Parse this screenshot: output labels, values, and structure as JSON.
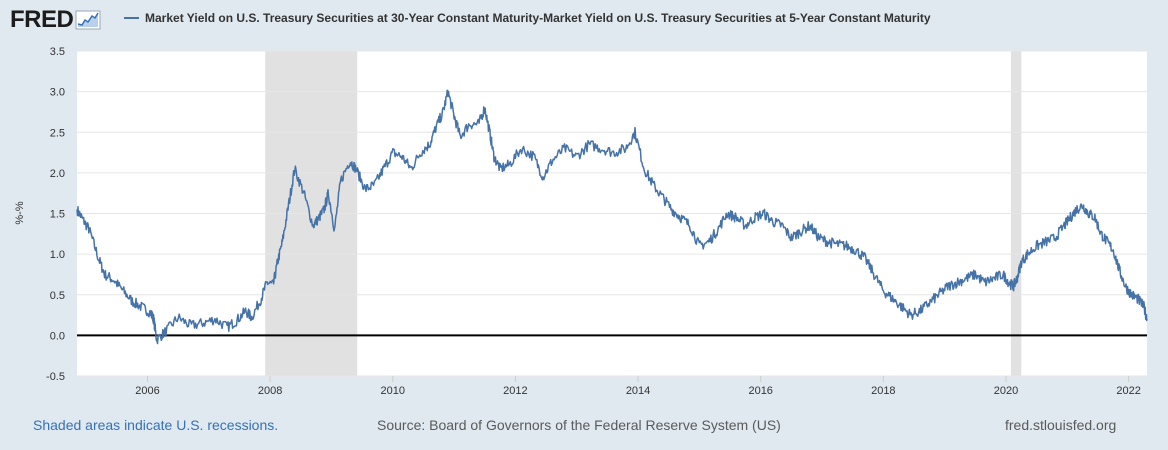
{
  "header": {
    "logo_text": "FRED",
    "logo_icon": "chart-line-icon"
  },
  "footer": {
    "recession_note": "Shaded areas indicate U.S. recessions.",
    "source": "Source: Board of Governors of the Federal Reserve System (US)",
    "site": "fred.stlouisfed.org"
  },
  "colors": {
    "series": "#4572a7",
    "recession": "#e1e1e1",
    "zero_line": "#000000",
    "background": "#e1e9f0",
    "plot": "#ffffff"
  },
  "chart_data": {
    "type": "line",
    "title": "Market Yield on U.S. Treasury Securities at 30-Year Constant Maturity-Market Yield on U.S. Treasury Securities at 5-Year Constant Maturity",
    "xlabel": "",
    "ylabel": "%-%",
    "xlim": [
      2004.85,
      2022.3
    ],
    "ylim": [
      -0.5,
      3.5
    ],
    "y_ticks": [
      "-0.5",
      "0.0",
      "0.5",
      "1.0",
      "1.5",
      "2.0",
      "2.5",
      "3.0",
      "3.5"
    ],
    "x_ticks": [
      "2006",
      "2008",
      "2010",
      "2012",
      "2014",
      "2016",
      "2018",
      "2020",
      "2022"
    ],
    "recessions": [
      [
        2007.92,
        2009.42
      ],
      [
        2020.08,
        2020.25
      ]
    ],
    "series": [
      {
        "name": "Market Yield on U.S. Treasury Securities at 30-Year Constant Maturity-Market Yield on U.S. Treasury Securities at 5-Year Constant Maturity",
        "x": [
          2004.85,
          2004.95,
          2005.05,
          2005.2,
          2005.3,
          2005.45,
          2005.6,
          2005.75,
          2005.9,
          2006.05,
          2006.1,
          2006.15,
          2006.3,
          2006.5,
          2006.7,
          2006.9,
          2007.1,
          2007.3,
          2007.45,
          2007.6,
          2007.7,
          2007.85,
          2007.95,
          2008.05,
          2008.12,
          2008.2,
          2008.3,
          2008.4,
          2008.55,
          2008.7,
          2008.8,
          2008.88,
          2008.95,
          2009.05,
          2009.15,
          2009.3,
          2009.4,
          2009.55,
          2009.7,
          2009.85,
          2010.0,
          2010.15,
          2010.3,
          2010.45,
          2010.6,
          2010.7,
          2010.82,
          2010.9,
          2011.0,
          2011.1,
          2011.25,
          2011.4,
          2011.5,
          2011.58,
          2011.65,
          2011.75,
          2011.9,
          2012.1,
          2012.3,
          2012.45,
          2012.6,
          2012.8,
          2013.0,
          2013.2,
          2013.4,
          2013.6,
          2013.8,
          2013.95,
          2014.1,
          2014.25,
          2014.4,
          2014.55,
          2014.7,
          2014.85,
          2015.0,
          2015.15,
          2015.3,
          2015.45,
          2015.6,
          2015.75,
          2015.9,
          2016.05,
          2016.2,
          2016.35,
          2016.5,
          2016.65,
          2016.8,
          2016.95,
          2017.1,
          2017.25,
          2017.4,
          2017.55,
          2017.7,
          2017.85,
          2018.0,
          2018.15,
          2018.3,
          2018.45,
          2018.6,
          2018.75,
          2018.9,
          2019.05,
          2019.2,
          2019.35,
          2019.5,
          2019.65,
          2019.8,
          2019.95,
          2020.05,
          2020.12,
          2020.18,
          2020.25,
          2020.35,
          2020.5,
          2020.65,
          2020.8,
          2020.95,
          2021.05,
          2021.15,
          2021.25,
          2021.35,
          2021.45,
          2021.55,
          2021.65,
          2021.75,
          2021.85,
          2021.95,
          2022.05,
          2022.15,
          2022.25,
          2022.3
        ],
        "values": [
          1.55,
          1.42,
          1.3,
          0.95,
          0.75,
          0.68,
          0.55,
          0.42,
          0.35,
          0.28,
          0.2,
          -0.05,
          0.05,
          0.22,
          0.12,
          0.15,
          0.2,
          0.1,
          0.18,
          0.3,
          0.22,
          0.45,
          0.65,
          0.62,
          0.9,
          1.15,
          1.6,
          2.05,
          1.75,
          1.35,
          1.45,
          1.55,
          1.75,
          1.3,
          1.9,
          2.15,
          2.05,
          1.8,
          1.85,
          2.05,
          2.25,
          2.2,
          2.05,
          2.25,
          2.35,
          2.55,
          2.75,
          3.0,
          2.7,
          2.45,
          2.6,
          2.6,
          2.8,
          2.5,
          2.2,
          2.05,
          2.1,
          2.3,
          2.2,
          1.95,
          2.15,
          2.3,
          2.2,
          2.35,
          2.3,
          2.25,
          2.3,
          2.5,
          2.05,
          1.85,
          1.7,
          1.55,
          1.45,
          1.35,
          1.1,
          1.15,
          1.3,
          1.5,
          1.45,
          1.35,
          1.45,
          1.5,
          1.4,
          1.35,
          1.2,
          1.28,
          1.35,
          1.2,
          1.15,
          1.12,
          1.1,
          1.05,
          0.95,
          0.75,
          0.55,
          0.45,
          0.35,
          0.25,
          0.3,
          0.4,
          0.5,
          0.6,
          0.65,
          0.7,
          0.75,
          0.65,
          0.7,
          0.75,
          0.65,
          0.6,
          0.7,
          0.9,
          1.0,
          1.1,
          1.15,
          1.2,
          1.35,
          1.45,
          1.55,
          1.6,
          1.5,
          1.45,
          1.25,
          1.15,
          1.05,
          0.8,
          0.6,
          0.5,
          0.45,
          0.35,
          0.2
        ]
      }
    ]
  }
}
